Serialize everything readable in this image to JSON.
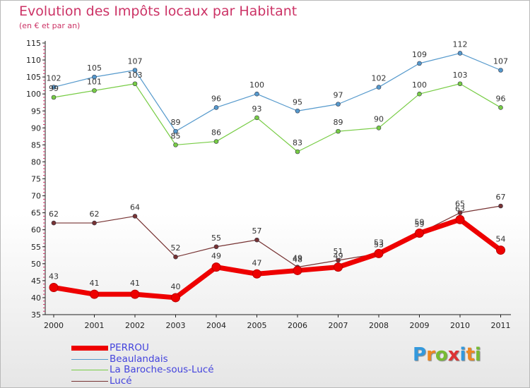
{
  "header": {
    "title": "Evolution des Impôts locaux par Habitant",
    "subtitle": "(en € et par an)"
  },
  "chart_data": {
    "type": "line",
    "title": "Evolution des Impôts locaux par Habitant",
    "subtitle": "(en € et par an)",
    "xlabel": "",
    "ylabel": "",
    "categories": [
      "2000",
      "2001",
      "2002",
      "2003",
      "2004",
      "2005",
      "2006",
      "2007",
      "2008",
      "2009",
      "2010",
      "2011"
    ],
    "ylim": [
      35,
      115
    ],
    "yticks": [
      "35",
      "40",
      "45",
      "50",
      "55",
      "60",
      "65",
      "70",
      "75",
      "80",
      "85",
      "90",
      "95",
      "100",
      "105",
      "110",
      "115"
    ],
    "grid": false,
    "legend_position": "bottom-left",
    "series": [
      {
        "name": "PERROU",
        "color": "#ee0000",
        "values": [
          43,
          41,
          41,
          40,
          49,
          47,
          48,
          49,
          53,
          59,
          63,
          54
        ]
      },
      {
        "name": "Beaulandais",
        "color": "#5599cc",
        "values": [
          102,
          105,
          107,
          89,
          96,
          100,
          95,
          97,
          102,
          109,
          112,
          107
        ]
      },
      {
        "name": "La Baroche-sous-Lucé",
        "color": "#77cc44",
        "values": [
          99,
          101,
          103,
          85,
          86,
          93,
          83,
          89,
          90,
          100,
          103,
          96
        ]
      },
      {
        "name": "Lucé",
        "color": "#773333",
        "values": [
          62,
          62,
          64,
          52,
          55,
          57,
          49,
          51,
          53,
          59,
          65,
          67
        ]
      }
    ]
  },
  "logo": {
    "letters": [
      "P",
      "r",
      "o",
      "x",
      "i",
      "t",
      "i"
    ],
    "colors": [
      "#3399dd",
      "#ee8822",
      "#77bb33",
      "#dd3333",
      "#3399dd",
      "#ee8822",
      "#77bb33"
    ]
  }
}
